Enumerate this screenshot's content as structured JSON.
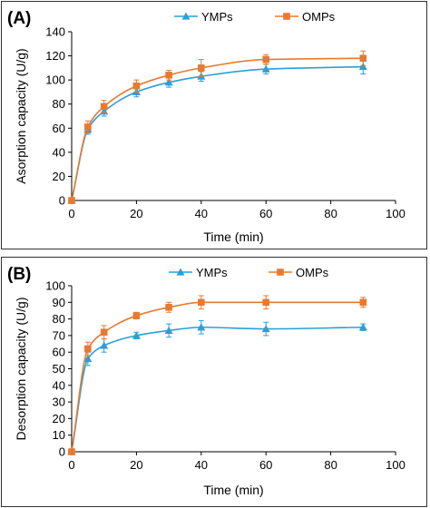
{
  "colors": {
    "ymps": "#2a9fd8",
    "omps": "#e87a30",
    "axis": "#000000"
  },
  "chart_data": [
    {
      "panel_label": "(A)",
      "type": "line",
      "xlabel": "Time (min)",
      "ylabel": "Asorption capacity (U/g)",
      "xlim": [
        0,
        100
      ],
      "ylim": [
        0,
        140
      ],
      "xticks": [
        "0",
        "20",
        "40",
        "60",
        "80",
        "100"
      ],
      "yticks": [
        "0",
        "20",
        "40",
        "60",
        "80",
        "100",
        "120",
        "140"
      ],
      "legend_position": "top",
      "grid": false,
      "x": [
        0,
        5,
        10,
        20,
        30,
        40,
        60,
        90
      ],
      "series": [
        {
          "name": "YMPs",
          "marker": "triangle",
          "color": "#2a9fd8",
          "values": [
            0,
            59,
            74,
            90,
            98,
            103,
            109,
            111
          ],
          "errors": [
            0,
            4,
            4,
            4,
            4,
            4,
            4,
            6
          ]
        },
        {
          "name": "OMPs",
          "marker": "square",
          "color": "#e87a30",
          "values": [
            0,
            61,
            78,
            95,
            104,
            110,
            117,
            118
          ],
          "errors": [
            0,
            5,
            5,
            5,
            4,
            7,
            4,
            6
          ]
        }
      ]
    },
    {
      "panel_label": "(B)",
      "type": "line",
      "xlabel": "Time (min)",
      "ylabel": "Desorption capacity (U/g)",
      "xlim": [
        0,
        100
      ],
      "ylim": [
        0,
        100
      ],
      "xticks": [
        "0",
        "20",
        "40",
        "60",
        "80",
        "100"
      ],
      "yticks": [
        "0",
        "10",
        "20",
        "30",
        "40",
        "50",
        "60",
        "70",
        "80",
        "90",
        "100"
      ],
      "legend_position": "top",
      "grid": false,
      "x": [
        0,
        5,
        10,
        20,
        30,
        40,
        60,
        90
      ],
      "series": [
        {
          "name": "YMPs",
          "marker": "triangle",
          "color": "#2a9fd8",
          "values": [
            0,
            56,
            64,
            70,
            73,
            75,
            74,
            75
          ],
          "errors": [
            0,
            4,
            4,
            2,
            4,
            4,
            4,
            2
          ]
        },
        {
          "name": "OMPs",
          "marker": "square",
          "color": "#e87a30",
          "values": [
            0,
            62,
            72,
            82,
            87,
            90,
            90,
            90
          ],
          "errors": [
            0,
            4,
            4,
            2,
            3,
            4,
            4,
            3
          ]
        }
      ]
    }
  ]
}
